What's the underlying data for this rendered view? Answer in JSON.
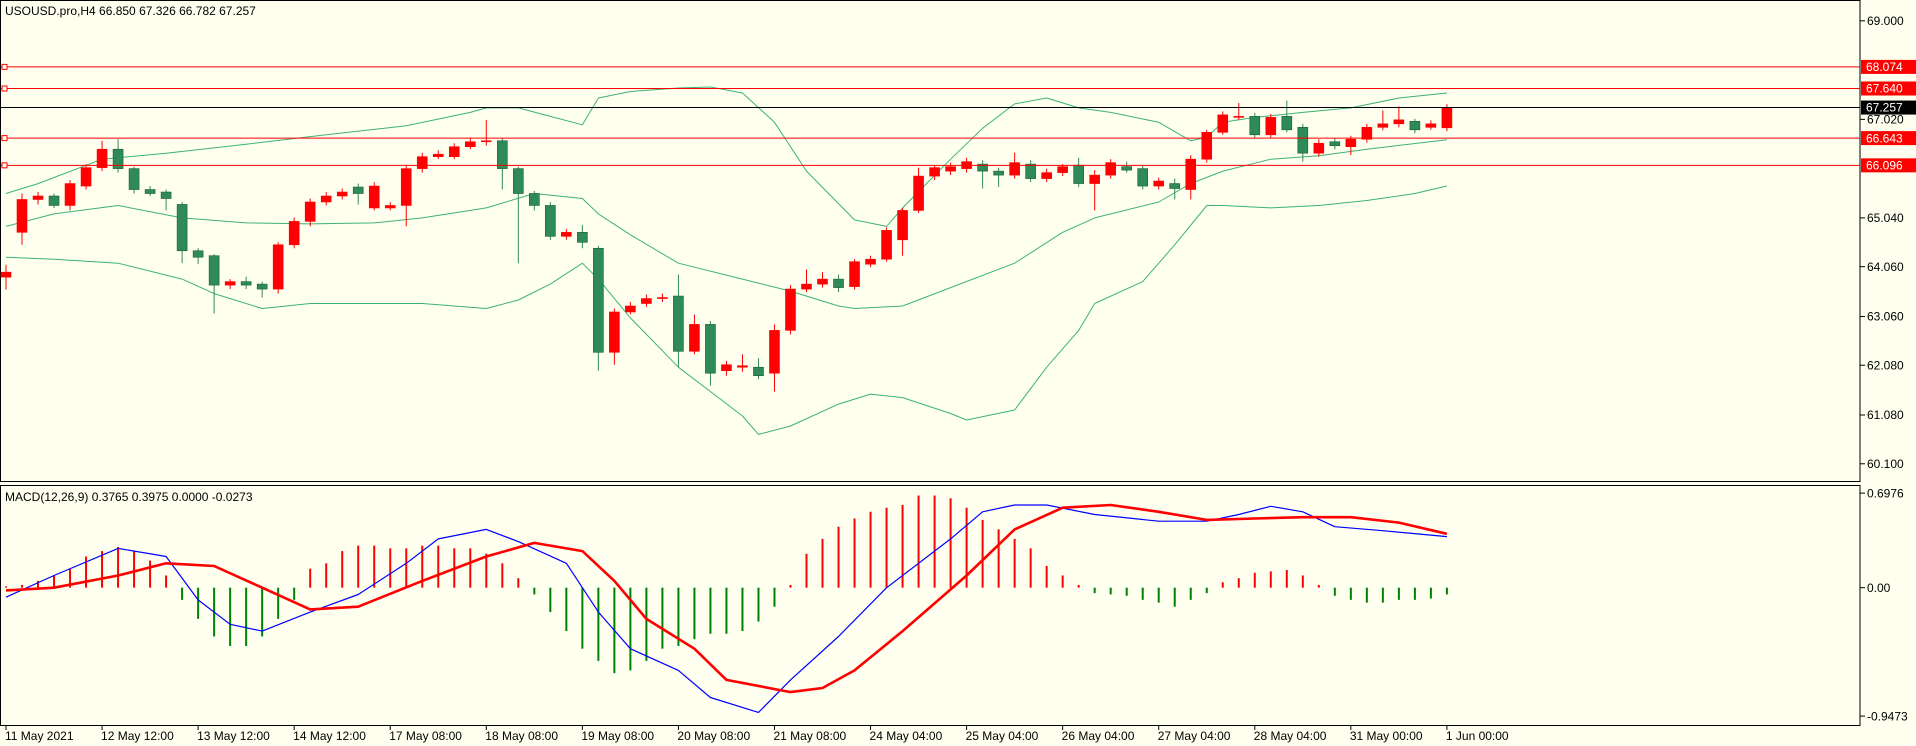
{
  "chart_data": [
    {
      "type": "candlestick",
      "title": "USOUSD.pro,H4 66.850 67.326 66.782 67.257",
      "x_labels": [
        "11 May 2021",
        "12 May 12:00",
        "13 May 12:00",
        "14 May 12:00",
        "17 May 08:00",
        "18 May 08:00",
        "19 May 08:00",
        "20 May 08:00",
        "21 May 08:00",
        "24 May 04:00",
        "25 May 04:00",
        "26 May 04:00",
        "27 May 04:00",
        "28 May 04:00",
        "31 May 00:00",
        "1 Jun 00:00"
      ],
      "open": [
        63.85,
        64.75,
        65.41,
        65.48,
        65.29,
        65.68,
        66.05,
        66.42,
        66.03,
        65.61,
        65.56,
        65.31,
        64.38,
        64.28,
        63.69,
        63.76,
        63.71,
        63.61,
        64.5,
        64.97,
        65.36,
        65.48,
        65.66,
        65.24,
        65.24,
        65.29,
        66.03,
        66.27,
        66.27,
        66.47,
        66.57,
        66.59,
        66.03,
        65.53,
        65.29,
        64.67,
        64.75,
        64.43,
        62.34,
        63.15,
        63.32,
        63.42,
        63.47,
        62.36,
        62.9,
        61.97,
        62.04,
        62.04,
        61.92,
        62.78,
        63.61,
        63.71,
        63.81,
        63.66,
        64.11,
        64.21,
        64.6,
        65.19,
        65.88,
        65.98,
        66.03,
        66.12,
        65.98,
        65.9,
        66.12,
        65.83,
        65.95,
        66.1,
        65.73,
        65.9,
        66.07,
        66.03,
        65.68,
        65.73,
        65.61,
        66.22,
        66.76,
        67.06,
        67.08,
        66.71,
        67.08,
        66.86,
        66.34,
        66.57,
        66.47,
        66.62,
        66.86,
        66.93,
        66.98,
        66.86,
        66.85
      ],
      "high": [
        64.1,
        65.53,
        65.56,
        65.53,
        65.8,
        66.12,
        66.59,
        66.62,
        66.07,
        65.68,
        65.61,
        65.36,
        64.43,
        64.31,
        63.81,
        63.86,
        63.76,
        64.55,
        65.05,
        65.43,
        65.56,
        65.63,
        65.73,
        65.76,
        65.36,
        66.1,
        66.35,
        66.4,
        66.54,
        66.64,
        67.01,
        66.64,
        66.07,
        65.58,
        65.36,
        64.82,
        64.9,
        64.48,
        63.22,
        63.35,
        63.5,
        63.52,
        63.9,
        63.1,
        62.97,
        62.17,
        62.3,
        62.22,
        62.9,
        63.69,
        64.0,
        63.95,
        63.9,
        64.21,
        64.28,
        64.85,
        65.24,
        66.05,
        66.1,
        66.15,
        66.25,
        66.2,
        66.05,
        66.35,
        66.2,
        66.03,
        66.12,
        66.25,
        66.0,
        66.22,
        66.17,
        66.1,
        65.85,
        65.83,
        66.3,
        66.81,
        67.18,
        67.35,
        67.15,
        67.13,
        67.4,
        66.93,
        66.62,
        66.64,
        66.69,
        66.93,
        67.2,
        67.28,
        67.03,
        67.0,
        67.326
      ],
      "low": [
        63.6,
        64.5,
        65.31,
        65.24,
        65.19,
        65.61,
        65.98,
        65.95,
        65.53,
        65.48,
        65.19,
        64.13,
        64.11,
        63.12,
        63.61,
        63.61,
        63.44,
        63.52,
        64.43,
        64.87,
        65.29,
        65.41,
        65.31,
        65.19,
        65.19,
        64.87,
        65.95,
        66.22,
        66.22,
        66.42,
        66.49,
        65.61,
        64.13,
        65.19,
        64.6,
        64.6,
        64.43,
        61.97,
        62.09,
        63.1,
        63.25,
        63.35,
        62.04,
        62.3,
        61.67,
        61.87,
        61.95,
        61.8,
        61.55,
        62.7,
        63.55,
        63.64,
        63.55,
        63.6,
        64.05,
        64.16,
        64.28,
        65.14,
        65.8,
        65.9,
        65.95,
        65.63,
        65.66,
        65.83,
        65.76,
        65.76,
        65.88,
        65.66,
        65.19,
        65.83,
        65.95,
        65.61,
        65.61,
        65.41,
        65.41,
        66.15,
        66.71,
        67.01,
        66.64,
        66.64,
        66.76,
        66.17,
        66.27,
        66.42,
        66.3,
        66.55,
        66.8,
        66.86,
        66.74,
        66.81,
        66.782
      ],
      "close": [
        63.95,
        65.41,
        65.48,
        65.29,
        65.73,
        66.05,
        66.42,
        66.03,
        65.61,
        65.53,
        65.43,
        64.38,
        64.25,
        63.69,
        63.76,
        63.69,
        63.61,
        64.5,
        64.97,
        65.36,
        65.48,
        65.56,
        65.53,
        65.68,
        65.29,
        66.03,
        66.27,
        66.32,
        66.47,
        66.57,
        66.59,
        66.03,
        65.53,
        65.29,
        64.67,
        64.75,
        64.55,
        62.34,
        63.15,
        63.27,
        63.42,
        63.44,
        62.36,
        62.9,
        61.92,
        62.09,
        62.07,
        61.87,
        62.78,
        63.61,
        63.71,
        63.81,
        63.64,
        64.16,
        64.21,
        64.79,
        65.19,
        65.88,
        66.05,
        66.07,
        66.17,
        65.98,
        65.9,
        66.15,
        65.83,
        65.95,
        66.07,
        65.73,
        65.9,
        66.15,
        66.0,
        65.68,
        65.78,
        65.63,
        66.22,
        66.76,
        67.11,
        67.08,
        66.71,
        67.06,
        66.81,
        66.34,
        66.54,
        66.49,
        66.62,
        66.86,
        66.93,
        67.01,
        66.81,
        66.93,
        67.257
      ],
      "up_color": "#ff0000",
      "down_color": "#2e8b57",
      "bands": [
        {
          "x": [
            0,
            2,
            6,
            10,
            15,
            20,
            25,
            29,
            30,
            32,
            34,
            36,
            37,
            39,
            42,
            44,
            46,
            48,
            50,
            53,
            55,
            56,
            59,
            61,
            63,
            65,
            67,
            69,
            72,
            74,
            75,
            76,
            78,
            81,
            84,
            87,
            90
          ],
          "values": [
            65.53,
            65.73,
            66.22,
            66.34,
            66.52,
            66.71,
            66.89,
            67.16,
            67.25,
            67.25,
            67.08,
            66.91,
            67.45,
            67.58,
            67.65,
            67.67,
            67.55,
            66.96,
            65.98,
            65.0,
            64.87,
            65.24,
            66.22,
            66.84,
            67.33,
            67.45,
            67.25,
            67.16,
            66.96,
            66.59,
            66.66,
            66.96,
            67.06,
            67.16,
            67.25,
            67.45,
            67.55
          ]
        },
        {
          "x": [
            0,
            3,
            7,
            11,
            15,
            19,
            23,
            26,
            30,
            33,
            36,
            37,
            39,
            42,
            46,
            49,
            52,
            53,
            56,
            59,
            63,
            66,
            68,
            72,
            74,
            76,
            79,
            82,
            85,
            90
          ],
          "values": [
            64.87,
            65.12,
            65.29,
            65.04,
            64.94,
            64.92,
            64.94,
            65.04,
            65.24,
            65.53,
            65.43,
            65.12,
            64.7,
            64.13,
            63.81,
            63.57,
            63.27,
            63.22,
            63.27,
            63.64,
            64.13,
            64.75,
            65.04,
            65.36,
            65.73,
            65.98,
            66.22,
            66.29,
            66.42,
            66.61
          ]
        },
        {
          "x": [
            0,
            3,
            7,
            11,
            13,
            16,
            19,
            23,
            26,
            30,
            32,
            34,
            36,
            37,
            39,
            42,
            46,
            47,
            49,
            52,
            54,
            56,
            59,
            60,
            63,
            65,
            67,
            68,
            71,
            73,
            75,
            76,
            79,
            82,
            85,
            88,
            90
          ],
          "values": [
            64.25,
            64.21,
            64.13,
            63.81,
            63.52,
            63.22,
            63.32,
            63.32,
            63.32,
            63.22,
            63.39,
            63.71,
            64.13,
            63.81,
            63.03,
            62.04,
            61.06,
            60.69,
            60.86,
            61.3,
            61.5,
            61.43,
            61.11,
            60.98,
            61.18,
            62.04,
            62.78,
            63.32,
            63.76,
            64.5,
            65.29,
            65.29,
            65.24,
            65.29,
            65.39,
            65.53,
            65.68
          ]
        }
      ],
      "band_color": "#3cb371",
      "levels": [
        68.074,
        {
          "value": 67.64,
          "label": "67.640"
        },
        66.643,
        66.096
      ],
      "level_color": "#ff0000",
      "last_price": 67.257,
      "last_price_color": "#000000",
      "ylim": [
        59.754,
        69.418
      ],
      "yticks": [
        {
          "value": 69,
          "label": "69.000"
        },
        {
          "value": 67.02,
          "label": "67.020"
        },
        {
          "value": 65.04,
          "label": "65.040"
        },
        {
          "value": 64.06,
          "label": "64.060"
        },
        {
          "value": 63.06,
          "label": "63.060"
        },
        {
          "value": 62.08,
          "label": "62.080"
        },
        {
          "value": 61.08,
          "label": "61.080"
        },
        {
          "value": 60.1,
          "label": "60.100"
        }
      ],
      "grid": false
    },
    {
      "type": "macd",
      "title": "MACD(12,26,9) 0.3765 0.3975 0.0000 -0.0273",
      "histogram": [
        0.01,
        0.02,
        0.05,
        0.09,
        0.14,
        0.23,
        0.27,
        0.3,
        0.27,
        0.2,
        0.09,
        -0.09,
        -0.23,
        -0.36,
        -0.43,
        -0.43,
        -0.36,
        -0.23,
        -0.09,
        0.14,
        0.18,
        0.27,
        0.31,
        0.31,
        0.29,
        0.29,
        0.31,
        0.31,
        0.29,
        0.29,
        0.25,
        0.18,
        0.07,
        -0.05,
        -0.18,
        -0.32,
        -0.45,
        -0.54,
        -0.63,
        -0.61,
        -0.54,
        -0.45,
        -0.43,
        -0.38,
        -0.34,
        -0.34,
        -0.32,
        -0.25,
        -0.14,
        0.02,
        0.25,
        0.36,
        0.45,
        0.51,
        0.56,
        0.59,
        0.61,
        0.68,
        0.68,
        0.66,
        0.59,
        0.5,
        0.43,
        0.36,
        0.29,
        0.16,
        0.09,
        0.02,
        -0.04,
        -0.05,
        -0.06,
        -0.09,
        -0.11,
        -0.14,
        -0.09,
        -0.04,
        0.04,
        0.07,
        0.11,
        0.12,
        0.13,
        0.09,
        0.02,
        -0.06,
        -0.09,
        -0.11,
        -0.11,
        -0.09,
        -0.09,
        -0.08,
        -0.05
      ],
      "up_color": "#ff0000",
      "down_color": "#008000",
      "main": {
        "x": [
          0,
          3,
          7,
          10,
          12,
          14,
          16,
          19,
          22,
          25,
          27,
          30,
          32,
          35,
          37,
          39,
          42,
          44,
          47,
          49,
          52,
          55,
          59,
          61,
          63,
          65,
          68,
          72,
          75,
          77,
          79,
          81,
          83,
          86,
          90
        ],
        "values": [
          -0.07,
          0.09,
          0.29,
          0.23,
          -0.09,
          -0.27,
          -0.32,
          -0.18,
          -0.05,
          0.18,
          0.36,
          0.43,
          0.34,
          0.18,
          -0.18,
          -0.45,
          -0.61,
          -0.81,
          -0.92,
          -0.68,
          -0.36,
          0,
          0.36,
          0.56,
          0.61,
          0.61,
          0.54,
          0.49,
          0.49,
          0.54,
          0.6,
          0.56,
          0.45,
          0.42,
          0.3765
        ],
        "color": "#0000ff"
      },
      "signal": {
        "x": [
          0,
          3,
          7,
          10,
          13,
          16,
          19,
          22,
          26,
          30,
          33,
          36,
          38,
          40,
          43,
          45,
          49,
          51,
          53,
          56,
          60,
          63,
          66,
          69,
          72,
          75,
          78,
          81,
          84,
          87,
          90
        ],
        "values": [
          -0.02,
          0,
          0.09,
          0.18,
          0.16,
          0,
          -0.16,
          -0.14,
          0.05,
          0.23,
          0.33,
          0.27,
          0.05,
          -0.23,
          -0.45,
          -0.68,
          -0.77,
          -0.74,
          -0.61,
          -0.32,
          0.09,
          0.43,
          0.59,
          0.61,
          0.56,
          0.5,
          0.51,
          0.52,
          0.52,
          0.48,
          0.3975
        ],
        "color": "#ff0000"
      },
      "ylim": [
        -1.013,
        0.75
      ],
      "yticks": [
        0.6976,
        {
          "value": 0,
          "label": "0.00"
        },
        -0.9473
      ],
      "grid": false
    }
  ]
}
